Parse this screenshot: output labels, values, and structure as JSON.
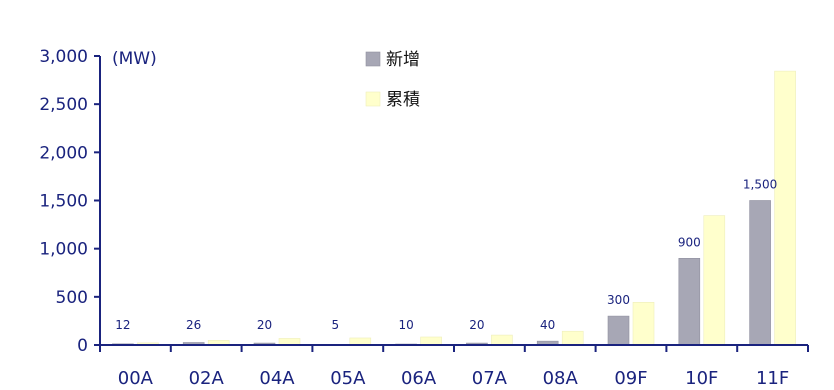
{
  "chart_data": {
    "type": "bar",
    "unit_label": "(MW)",
    "categories": [
      "00A",
      "02A",
      "04A",
      "05A",
      "06A",
      "07A",
      "08A",
      "09F",
      "10F",
      "11F"
    ],
    "series": [
      {
        "name": "新增",
        "color": "#a7a7b5",
        "values": [
          12,
          26,
          20,
          5,
          10,
          20,
          40,
          300,
          900,
          1500
        ],
        "data_labels": [
          "12",
          "26",
          "20",
          "5",
          "10",
          "20",
          "40",
          "300",
          "900",
          "1,500"
        ]
      },
      {
        "name": "累積",
        "color": "#ffffcc",
        "values": [
          22,
          48,
          68,
          73,
          83,
          103,
          143,
          443,
          1343,
          2843
        ]
      }
    ],
    "y_ticks": [
      "0",
      "500",
      "1,000",
      "1,500",
      "2,000",
      "2,500",
      "3,000"
    ],
    "ylim": [
      0,
      3000
    ],
    "grid": false,
    "legend_position": "top-center",
    "axis_color": "#1a237e"
  }
}
